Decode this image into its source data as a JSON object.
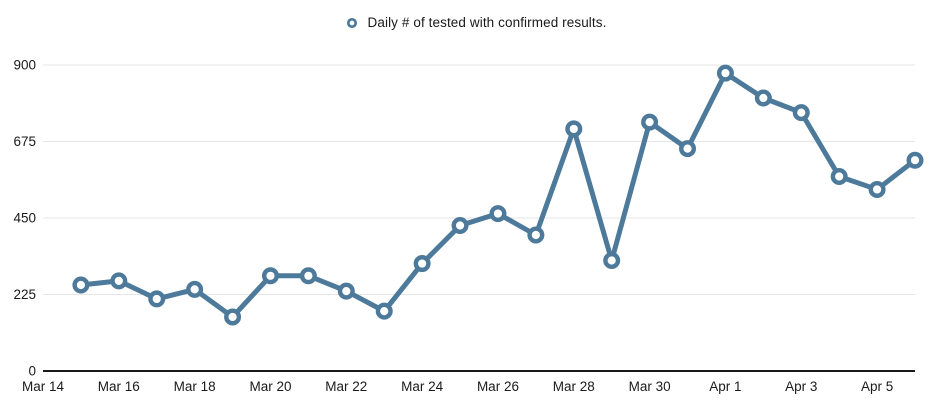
{
  "chart_data": {
    "type": "line",
    "legend": "Daily # of tested with confirmed results.",
    "categories": [
      "Mar 15",
      "Mar 16",
      "Mar 17",
      "Mar 18",
      "Mar 19",
      "Mar 20",
      "Mar 21",
      "Mar 22",
      "Mar 23",
      "Mar 24",
      "Mar 25",
      "Mar 26",
      "Mar 27",
      "Mar 28",
      "Mar 29",
      "Mar 30",
      "Mar 31",
      "Apr 1",
      "Apr 2",
      "Apr 3",
      "Apr 4",
      "Apr 5",
      "Apr 6"
    ],
    "values": [
      253,
      265,
      212,
      240,
      159,
      280,
      280,
      235,
      176,
      316,
      428,
      463,
      400,
      712,
      325,
      732,
      654,
      876,
      803,
      760,
      572,
      534,
      620
    ],
    "title": "",
    "xlabel": "",
    "ylabel": "",
    "x_axis": {
      "domain_start_label": "Mar 14",
      "domain_days": 23,
      "first_point_day_offset": 1,
      "tick_labels": [
        {
          "label": "Mar 14",
          "day": 0
        },
        {
          "label": "Mar 16",
          "day": 2
        },
        {
          "label": "Mar 18",
          "day": 4
        },
        {
          "label": "Mar 20",
          "day": 6
        },
        {
          "label": "Mar 22",
          "day": 8
        },
        {
          "label": "Mar 24",
          "day": 10
        },
        {
          "label": "Mar 26",
          "day": 12
        },
        {
          "label": "Mar 28",
          "day": 14
        },
        {
          "label": "Mar 30",
          "day": 16
        },
        {
          "label": "Apr 1",
          "day": 18
        },
        {
          "label": "Apr 3",
          "day": 20
        },
        {
          "label": "Apr 5",
          "day": 22
        }
      ]
    },
    "y_axis": {
      "ticks": [
        0,
        225,
        450,
        675,
        900
      ],
      "ylim": [
        0,
        900
      ]
    },
    "grid": true,
    "legend_position": "top-center",
    "colors": {
      "line": "#4d7a9b",
      "marker_fill": "#ffffff",
      "grid": "#e6e6e6",
      "axis": "#1a1a1a",
      "text": "#1a1a1a"
    }
  }
}
